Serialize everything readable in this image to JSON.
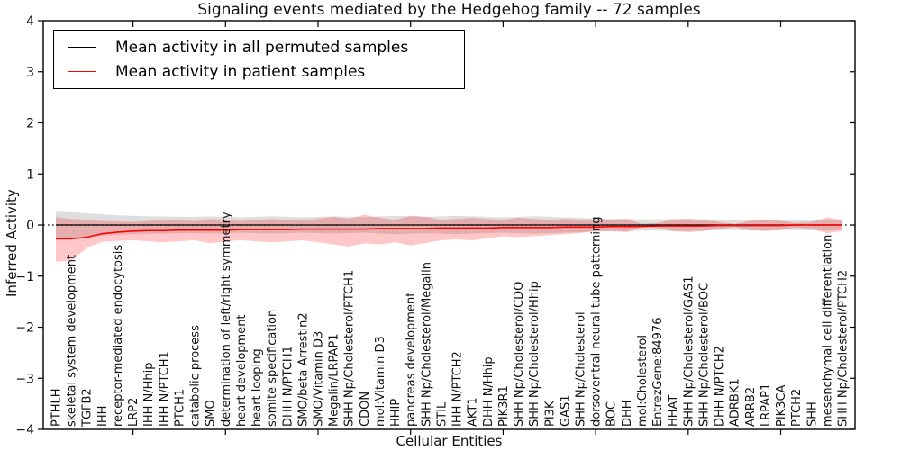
{
  "chart_data": {
    "type": "line",
    "title": "Signaling events mediated by the Hedgehog family -- 72 samples",
    "xlabel": "Cellular Entities",
    "ylabel": "Inferred Activity",
    "ylim": [
      -4,
      4
    ],
    "yticks": [
      4,
      3,
      2,
      1,
      0,
      -1,
      -2,
      -3,
      -4
    ],
    "ytick_labels": [
      "4",
      "3",
      "2",
      "1",
      "0",
      "−1",
      "−2",
      "−3",
      "−4"
    ],
    "grid": false,
    "legend_position": "upper-left",
    "major_xtick_indices": [
      5,
      11,
      17,
      23,
      29,
      35,
      41,
      47
    ],
    "categories": [
      "PTHLH",
      "skeletal system development",
      "TGFB2",
      "IHH",
      "receptor-mediated endocytosis",
      "LRP2",
      "IHH N/Hhip",
      "IHH N/PTCH1",
      "PTCH1",
      "catabolic process",
      "SMO",
      "determination of left/right symmetry",
      "heart development",
      "heart looping",
      "somite specification",
      "DHH N/PTCH1",
      "SMO/beta Arrestin2",
      "SMO/Vitamin D3",
      "Megalin/LRPAP1",
      "SHH Np/Cholesterol/PTCH1",
      "CDON",
      "mol:Vitamin D3",
      "HHIP",
      "pancreas development",
      "SHH Np/Cholesterol/Megalin",
      "STIL",
      "IHH N/PTCH2",
      "AKT1",
      "DHH N/Hhip",
      "PIK3R1",
      "SHH Np/Cholesterol/CDO",
      "SHH Np/Cholesterol/Hhip",
      "PI3K",
      "GAS1",
      "SHH Np/Cholesterol",
      "dorsoventral neural tube patterning",
      "BOC",
      "DHH",
      "mol:Cholesterol",
      "EntrezGene:84976",
      "HHAT",
      "SHH Np/Cholesterol/GAS1",
      "SHH Np/Cholesterol/BOC",
      "DHH N/PTCH2",
      "ADRBK1",
      "ARRB2",
      "LRPAP1",
      "PIK3CA",
      "PTCH2",
      "SHH",
      "mesenchymal cell differentiation",
      "SHH Np/Cholesterol/PTCH2"
    ],
    "series": [
      {
        "name": "Mean activity in all permuted samples",
        "color": "#000000",
        "values": [
          0,
          0,
          0,
          0,
          0,
          0,
          0,
          0,
          0,
          0,
          0,
          0,
          0,
          0,
          0,
          0,
          0,
          0,
          0,
          0,
          0,
          0,
          0,
          0,
          0,
          0,
          0,
          0,
          0,
          0,
          0,
          0,
          0,
          0,
          0,
          0,
          0,
          0,
          0,
          0,
          0,
          0,
          0,
          0,
          0,
          0,
          0,
          0,
          0,
          0,
          0,
          0
        ]
      },
      {
        "name": "Mean activity in patient samples",
        "color": "#ff0000",
        "values": [
          -0.27,
          -0.27,
          -0.24,
          -0.17,
          -0.14,
          -0.12,
          -0.11,
          -0.11,
          -0.1,
          -0.1,
          -0.1,
          -0.1,
          -0.09,
          -0.09,
          -0.09,
          -0.09,
          -0.08,
          -0.08,
          -0.08,
          -0.08,
          -0.08,
          -0.07,
          -0.07,
          -0.07,
          -0.07,
          -0.06,
          -0.06,
          -0.06,
          -0.06,
          -0.05,
          -0.05,
          -0.05,
          -0.05,
          -0.04,
          -0.04,
          -0.04,
          -0.03,
          -0.03,
          -0.03,
          -0.02,
          -0.02,
          -0.02,
          -0.02,
          -0.01,
          -0.01,
          -0.01,
          -0.01,
          -0.01,
          0.0,
          0.0,
          0.0,
          0.0
        ]
      }
    ],
    "bands": [
      {
        "name": "permuted-samples-std-band",
        "color": "#000000",
        "opacity": 0.13,
        "upper": [
          0.26,
          0.25,
          0.23,
          0.21,
          0.19,
          0.18,
          0.17,
          0.17,
          0.16,
          0.16,
          0.17,
          0.16,
          0.15,
          0.16,
          0.17,
          0.16,
          0.15,
          0.16,
          0.17,
          0.16,
          0.15,
          0.17,
          0.18,
          0.17,
          0.16,
          0.17,
          0.18,
          0.17,
          0.16,
          0.15,
          0.16,
          0.17,
          0.16,
          0.15,
          0.14,
          0.13,
          0.12,
          0.12,
          0.11,
          0.11,
          0.12,
          0.12,
          0.11,
          0.1,
          0.1,
          0.11,
          0.11,
          0.1,
          0.1,
          0.1,
          0.11,
          0.1
        ],
        "lower": [
          -0.26,
          -0.25,
          -0.23,
          -0.21,
          -0.19,
          -0.18,
          -0.17,
          -0.17,
          -0.16,
          -0.16,
          -0.17,
          -0.16,
          -0.15,
          -0.16,
          -0.17,
          -0.16,
          -0.15,
          -0.16,
          -0.17,
          -0.16,
          -0.15,
          -0.17,
          -0.18,
          -0.17,
          -0.16,
          -0.17,
          -0.18,
          -0.17,
          -0.16,
          -0.15,
          -0.16,
          -0.17,
          -0.16,
          -0.15,
          -0.14,
          -0.13,
          -0.12,
          -0.12,
          -0.11,
          -0.11,
          -0.12,
          -0.12,
          -0.11,
          -0.1,
          -0.1,
          -0.11,
          -0.11,
          -0.1,
          -0.1,
          -0.1,
          -0.11,
          -0.1
        ]
      },
      {
        "name": "patient-samples-std-band",
        "color": "#ff0000",
        "opacity": 0.22,
        "upper": [
          0.15,
          0.12,
          0.1,
          0.08,
          0.07,
          0.06,
          0.08,
          0.1,
          0.09,
          0.08,
          0.12,
          0.1,
          0.08,
          0.1,
          0.12,
          0.1,
          0.09,
          0.12,
          0.16,
          0.12,
          0.2,
          0.14,
          0.1,
          0.18,
          0.16,
          0.1,
          0.12,
          0.14,
          0.12,
          0.1,
          0.14,
          0.12,
          0.1,
          0.12,
          0.1,
          0.08,
          0.1,
          0.12,
          0.02,
          0.04,
          0.1,
          0.12,
          0.1,
          0.06,
          0.02,
          0.08,
          0.1,
          0.08,
          0.04,
          0.06,
          0.15,
          0.1
        ],
        "lower": [
          -0.72,
          -0.7,
          -0.45,
          -0.33,
          -0.31,
          -0.3,
          -0.32,
          -0.34,
          -0.32,
          -0.3,
          -0.36,
          -0.32,
          -0.3,
          -0.32,
          -0.34,
          -0.32,
          -0.3,
          -0.34,
          -0.38,
          -0.42,
          -0.36,
          -0.38,
          -0.34,
          -0.4,
          -0.35,
          -0.3,
          -0.28,
          -0.3,
          -0.26,
          -0.22,
          -0.24,
          -0.22,
          -0.2,
          -0.18,
          -0.16,
          -0.12,
          -0.12,
          -0.14,
          -0.04,
          -0.06,
          -0.12,
          -0.14,
          -0.12,
          -0.08,
          -0.04,
          -0.1,
          -0.12,
          -0.1,
          -0.05,
          -0.08,
          -0.16,
          -0.12
        ]
      }
    ],
    "zero_line": {
      "y": 0,
      "style": "dotted",
      "color": "#000000"
    },
    "legend": {
      "entries": [
        {
          "label": "Mean activity in all permuted samples",
          "color": "#000000"
        },
        {
          "label": "Mean activity in patient samples",
          "color": "#ff0000"
        }
      ]
    }
  }
}
